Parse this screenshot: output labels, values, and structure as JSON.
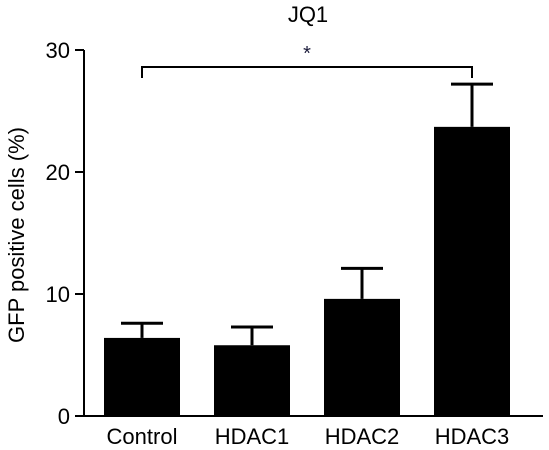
{
  "chart_data": {
    "type": "bar",
    "title": "JQ1",
    "xlabel": "",
    "ylabel": "GFP positive cells (%)",
    "categories": [
      "Control",
      "HDAC1",
      "HDAC2",
      "HDAC3"
    ],
    "values": [
      6.4,
      5.8,
      9.6,
      23.7
    ],
    "errors": [
      1.2,
      1.5,
      2.5,
      3.5
    ],
    "ylim": [
      0,
      30
    ],
    "yticks": [
      0,
      10,
      20,
      30
    ],
    "bar_color": "#000000",
    "significance": {
      "from": "Control",
      "to": "HDAC3",
      "label": "*"
    },
    "grid": false,
    "legend": "none"
  }
}
